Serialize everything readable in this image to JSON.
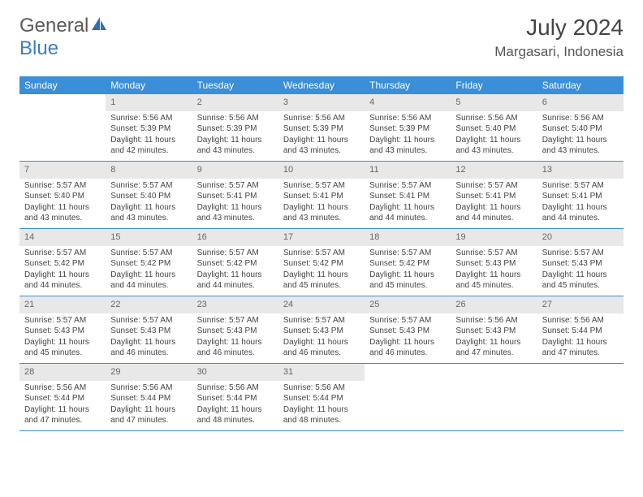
{
  "logo": {
    "word1": "General",
    "word2": "Blue"
  },
  "header": {
    "title": "July 2024",
    "location": "Margasari, Indonesia"
  },
  "colors": {
    "header_bg": "#3b8ed8",
    "header_text": "#ffffff",
    "daynum_bg": "#e8e8e8",
    "daynum_text": "#666666",
    "body_text": "#444444",
    "border": "#3b8ed8",
    "logo_gray": "#5a5a5a",
    "logo_blue": "#3b7fc4"
  },
  "weekdays": [
    "Sunday",
    "Monday",
    "Tuesday",
    "Wednesday",
    "Thursday",
    "Friday",
    "Saturday"
  ],
  "weeks": [
    [
      {
        "n": "",
        "lines": []
      },
      {
        "n": "1",
        "lines": [
          "Sunrise: 5:56 AM",
          "Sunset: 5:39 PM",
          "Daylight: 11 hours and 42 minutes."
        ]
      },
      {
        "n": "2",
        "lines": [
          "Sunrise: 5:56 AM",
          "Sunset: 5:39 PM",
          "Daylight: 11 hours and 43 minutes."
        ]
      },
      {
        "n": "3",
        "lines": [
          "Sunrise: 5:56 AM",
          "Sunset: 5:39 PM",
          "Daylight: 11 hours and 43 minutes."
        ]
      },
      {
        "n": "4",
        "lines": [
          "Sunrise: 5:56 AM",
          "Sunset: 5:39 PM",
          "Daylight: 11 hours and 43 minutes."
        ]
      },
      {
        "n": "5",
        "lines": [
          "Sunrise: 5:56 AM",
          "Sunset: 5:40 PM",
          "Daylight: 11 hours and 43 minutes."
        ]
      },
      {
        "n": "6",
        "lines": [
          "Sunrise: 5:56 AM",
          "Sunset: 5:40 PM",
          "Daylight: 11 hours and 43 minutes."
        ]
      }
    ],
    [
      {
        "n": "7",
        "lines": [
          "Sunrise: 5:57 AM",
          "Sunset: 5:40 PM",
          "Daylight: 11 hours and 43 minutes."
        ]
      },
      {
        "n": "8",
        "lines": [
          "Sunrise: 5:57 AM",
          "Sunset: 5:40 PM",
          "Daylight: 11 hours and 43 minutes."
        ]
      },
      {
        "n": "9",
        "lines": [
          "Sunrise: 5:57 AM",
          "Sunset: 5:41 PM",
          "Daylight: 11 hours and 43 minutes."
        ]
      },
      {
        "n": "10",
        "lines": [
          "Sunrise: 5:57 AM",
          "Sunset: 5:41 PM",
          "Daylight: 11 hours and 43 minutes."
        ]
      },
      {
        "n": "11",
        "lines": [
          "Sunrise: 5:57 AM",
          "Sunset: 5:41 PM",
          "Daylight: 11 hours and 44 minutes."
        ]
      },
      {
        "n": "12",
        "lines": [
          "Sunrise: 5:57 AM",
          "Sunset: 5:41 PM",
          "Daylight: 11 hours and 44 minutes."
        ]
      },
      {
        "n": "13",
        "lines": [
          "Sunrise: 5:57 AM",
          "Sunset: 5:41 PM",
          "Daylight: 11 hours and 44 minutes."
        ]
      }
    ],
    [
      {
        "n": "14",
        "lines": [
          "Sunrise: 5:57 AM",
          "Sunset: 5:42 PM",
          "Daylight: 11 hours and 44 minutes."
        ]
      },
      {
        "n": "15",
        "lines": [
          "Sunrise: 5:57 AM",
          "Sunset: 5:42 PM",
          "Daylight: 11 hours and 44 minutes."
        ]
      },
      {
        "n": "16",
        "lines": [
          "Sunrise: 5:57 AM",
          "Sunset: 5:42 PM",
          "Daylight: 11 hours and 44 minutes."
        ]
      },
      {
        "n": "17",
        "lines": [
          "Sunrise: 5:57 AM",
          "Sunset: 5:42 PM",
          "Daylight: 11 hours and 45 minutes."
        ]
      },
      {
        "n": "18",
        "lines": [
          "Sunrise: 5:57 AM",
          "Sunset: 5:42 PM",
          "Daylight: 11 hours and 45 minutes."
        ]
      },
      {
        "n": "19",
        "lines": [
          "Sunrise: 5:57 AM",
          "Sunset: 5:43 PM",
          "Daylight: 11 hours and 45 minutes."
        ]
      },
      {
        "n": "20",
        "lines": [
          "Sunrise: 5:57 AM",
          "Sunset: 5:43 PM",
          "Daylight: 11 hours and 45 minutes."
        ]
      }
    ],
    [
      {
        "n": "21",
        "lines": [
          "Sunrise: 5:57 AM",
          "Sunset: 5:43 PM",
          "Daylight: 11 hours and 45 minutes."
        ]
      },
      {
        "n": "22",
        "lines": [
          "Sunrise: 5:57 AM",
          "Sunset: 5:43 PM",
          "Daylight: 11 hours and 46 minutes."
        ]
      },
      {
        "n": "23",
        "lines": [
          "Sunrise: 5:57 AM",
          "Sunset: 5:43 PM",
          "Daylight: 11 hours and 46 minutes."
        ]
      },
      {
        "n": "24",
        "lines": [
          "Sunrise: 5:57 AM",
          "Sunset: 5:43 PM",
          "Daylight: 11 hours and 46 minutes."
        ]
      },
      {
        "n": "25",
        "lines": [
          "Sunrise: 5:57 AM",
          "Sunset: 5:43 PM",
          "Daylight: 11 hours and 46 minutes."
        ]
      },
      {
        "n": "26",
        "lines": [
          "Sunrise: 5:56 AM",
          "Sunset: 5:43 PM",
          "Daylight: 11 hours and 47 minutes."
        ]
      },
      {
        "n": "27",
        "lines": [
          "Sunrise: 5:56 AM",
          "Sunset: 5:44 PM",
          "Daylight: 11 hours and 47 minutes."
        ]
      }
    ],
    [
      {
        "n": "28",
        "lines": [
          "Sunrise: 5:56 AM",
          "Sunset: 5:44 PM",
          "Daylight: 11 hours and 47 minutes."
        ]
      },
      {
        "n": "29",
        "lines": [
          "Sunrise: 5:56 AM",
          "Sunset: 5:44 PM",
          "Daylight: 11 hours and 47 minutes."
        ]
      },
      {
        "n": "30",
        "lines": [
          "Sunrise: 5:56 AM",
          "Sunset: 5:44 PM",
          "Daylight: 11 hours and 48 minutes."
        ]
      },
      {
        "n": "31",
        "lines": [
          "Sunrise: 5:56 AM",
          "Sunset: 5:44 PM",
          "Daylight: 11 hours and 48 minutes."
        ]
      },
      {
        "n": "",
        "lines": []
      },
      {
        "n": "",
        "lines": []
      },
      {
        "n": "",
        "lines": []
      }
    ]
  ]
}
